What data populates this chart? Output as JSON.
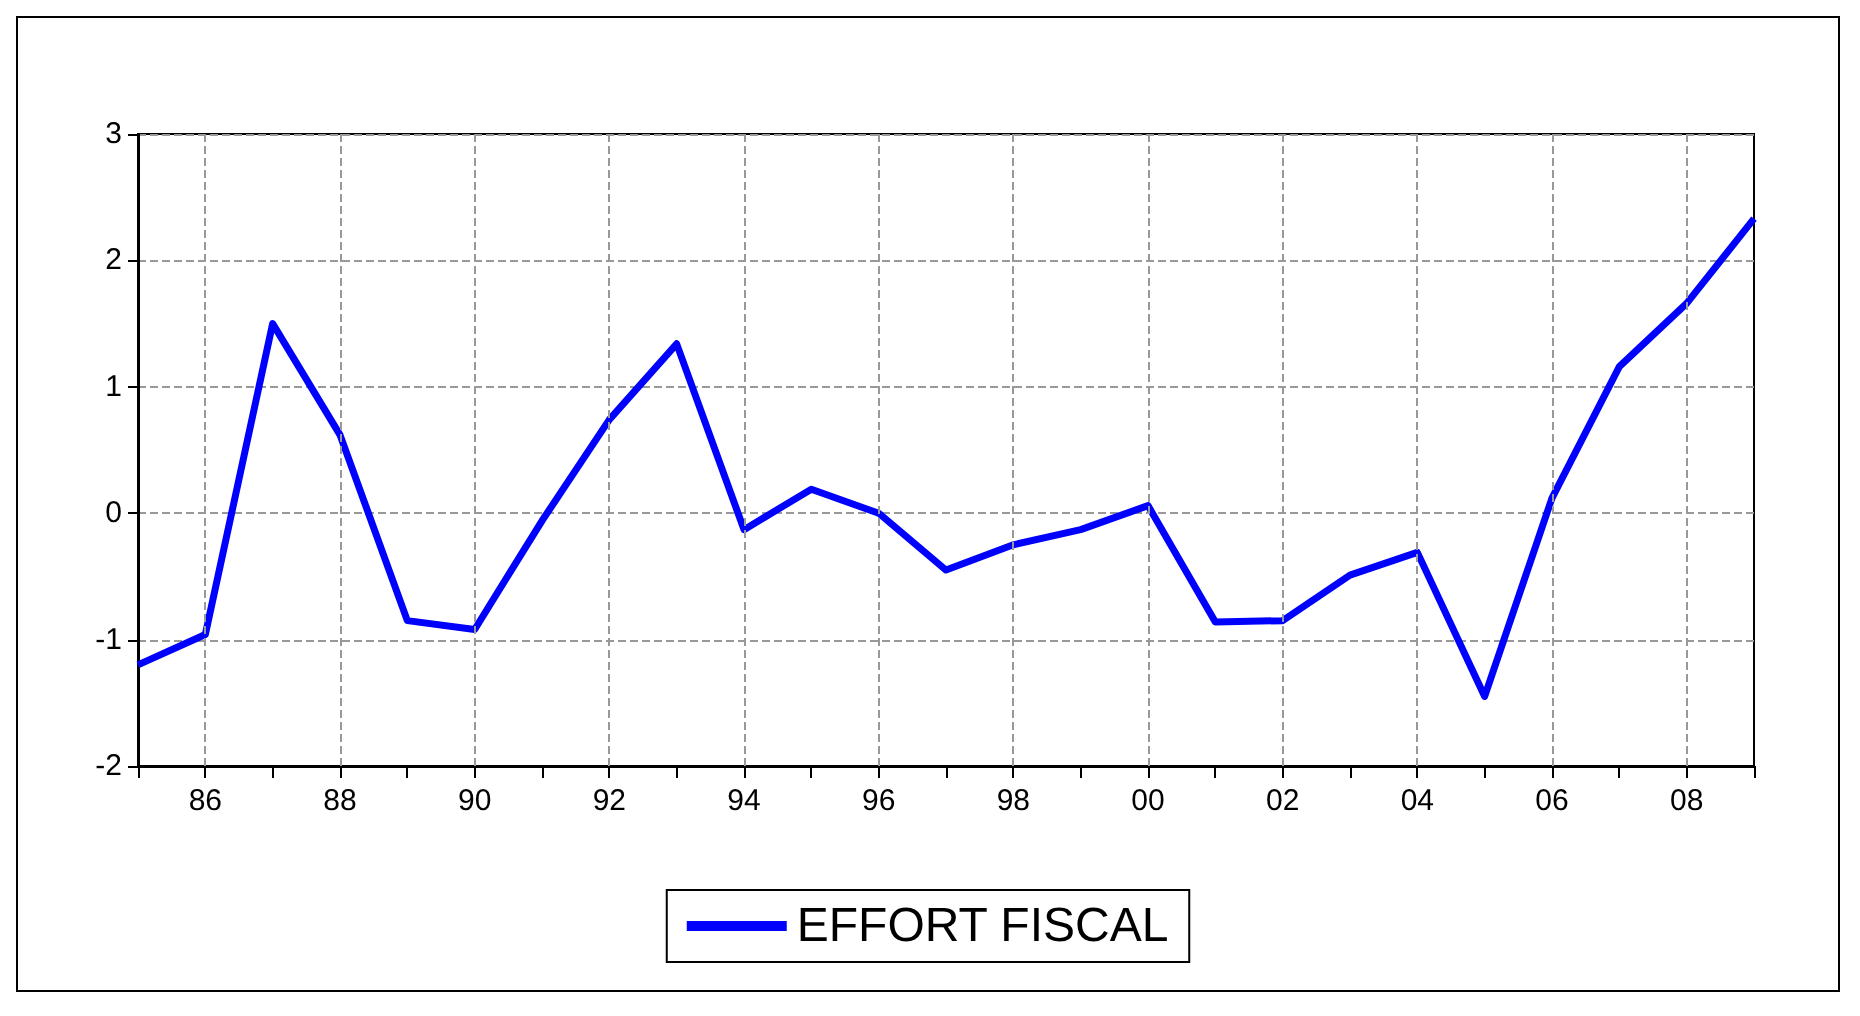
{
  "chart_data": {
    "type": "line",
    "x": [
      1985,
      1986,
      1987,
      1988,
      1989,
      1990,
      1991,
      1992,
      1993,
      1994,
      1995,
      1996,
      1997,
      1998,
      1999,
      2000,
      2001,
      2002,
      2003,
      2004,
      2005,
      2006,
      2007,
      2008,
      2009
    ],
    "series": [
      {
        "name": "EFFORT FISCAL",
        "color": "#0000ff",
        "values": [
          -1.2,
          -0.96,
          1.5,
          0.62,
          -0.85,
          -0.92,
          -0.06,
          0.74,
          1.34,
          -0.13,
          0.19,
          0.0,
          -0.45,
          -0.25,
          -0.13,
          0.06,
          -0.86,
          -0.85,
          -0.49,
          -0.31,
          -1.45,
          0.12,
          1.16,
          1.66,
          2.33
        ]
      }
    ],
    "xlim": [
      1985,
      2009
    ],
    "xticks": [
      {
        "value": 1985,
        "label": null
      },
      {
        "value": 1986,
        "label": "86"
      },
      {
        "value": 1987,
        "label": null
      },
      {
        "value": 1988,
        "label": "88"
      },
      {
        "value": 1989,
        "label": null
      },
      {
        "value": 1990,
        "label": "90"
      },
      {
        "value": 1991,
        "label": null
      },
      {
        "value": 1992,
        "label": "92"
      },
      {
        "value": 1993,
        "label": null
      },
      {
        "value": 1994,
        "label": "94"
      },
      {
        "value": 1995,
        "label": null
      },
      {
        "value": 1996,
        "label": "96"
      },
      {
        "value": 1997,
        "label": null
      },
      {
        "value": 1998,
        "label": "98"
      },
      {
        "value": 1999,
        "label": null
      },
      {
        "value": 2000,
        "label": "00"
      },
      {
        "value": 2001,
        "label": null
      },
      {
        "value": 2002,
        "label": "02"
      },
      {
        "value": 2003,
        "label": null
      },
      {
        "value": 2004,
        "label": "04"
      },
      {
        "value": 2005,
        "label": null
      },
      {
        "value": 2006,
        "label": "06"
      },
      {
        "value": 2007,
        "label": null
      },
      {
        "value": 2008,
        "label": "08"
      },
      {
        "value": 2009,
        "label": null
      }
    ],
    "ylim": [
      -2,
      3
    ],
    "yticks": [
      -2,
      -1,
      0,
      1,
      2,
      3
    ],
    "grid": true,
    "legend": "bottom",
    "line_style": "solid",
    "marker": "none"
  }
}
